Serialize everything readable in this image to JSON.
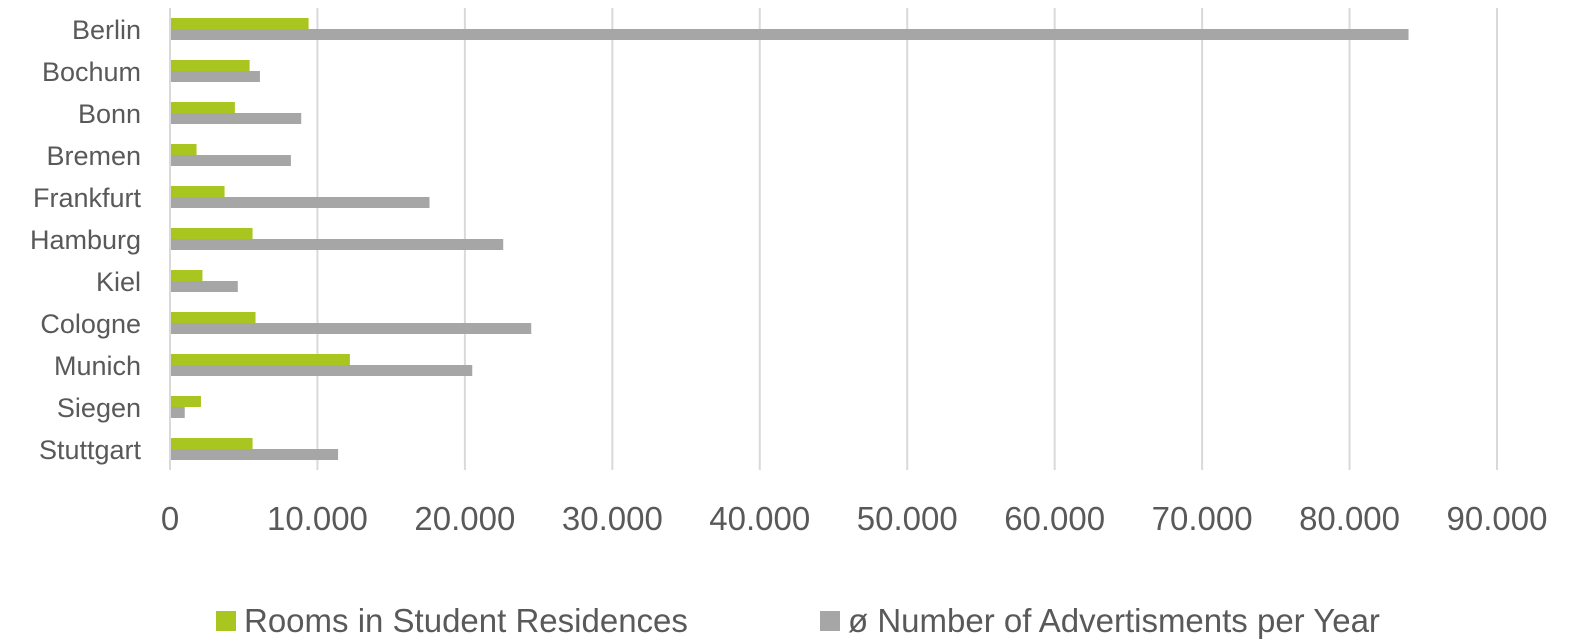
{
  "chart_data": {
    "type": "bar",
    "orientation": "horizontal",
    "categories": [
      "Berlin",
      "Bochum",
      "Bonn",
      "Bremen",
      "Frankfurt",
      "Hamburg",
      "Kiel",
      "Cologne",
      "Munich",
      "Siegen",
      "Stuttgart"
    ],
    "series": [
      {
        "name": "Rooms in Student Residences",
        "color": "#a9c51f",
        "values": [
          9400,
          5400,
          4400,
          1800,
          3700,
          5600,
          2200,
          5800,
          12200,
          2100,
          5600
        ]
      },
      {
        "name": "ø Number of Advertisments per Year",
        "color": "#a6a6a6",
        "values": [
          84000,
          6100,
          8900,
          8200,
          17600,
          22600,
          4600,
          24500,
          20500,
          1000,
          11400
        ]
      }
    ],
    "x_ticks": [
      "0",
      "10.000",
      "20.000",
      "30.000",
      "40.000",
      "50.000",
      "60.000",
      "70.000",
      "80.000",
      "90.000"
    ],
    "xlim": [
      0,
      90000
    ],
    "xlabel": "",
    "ylabel": "",
    "title": "",
    "grid": "vertical",
    "legend_position": "bottom"
  }
}
